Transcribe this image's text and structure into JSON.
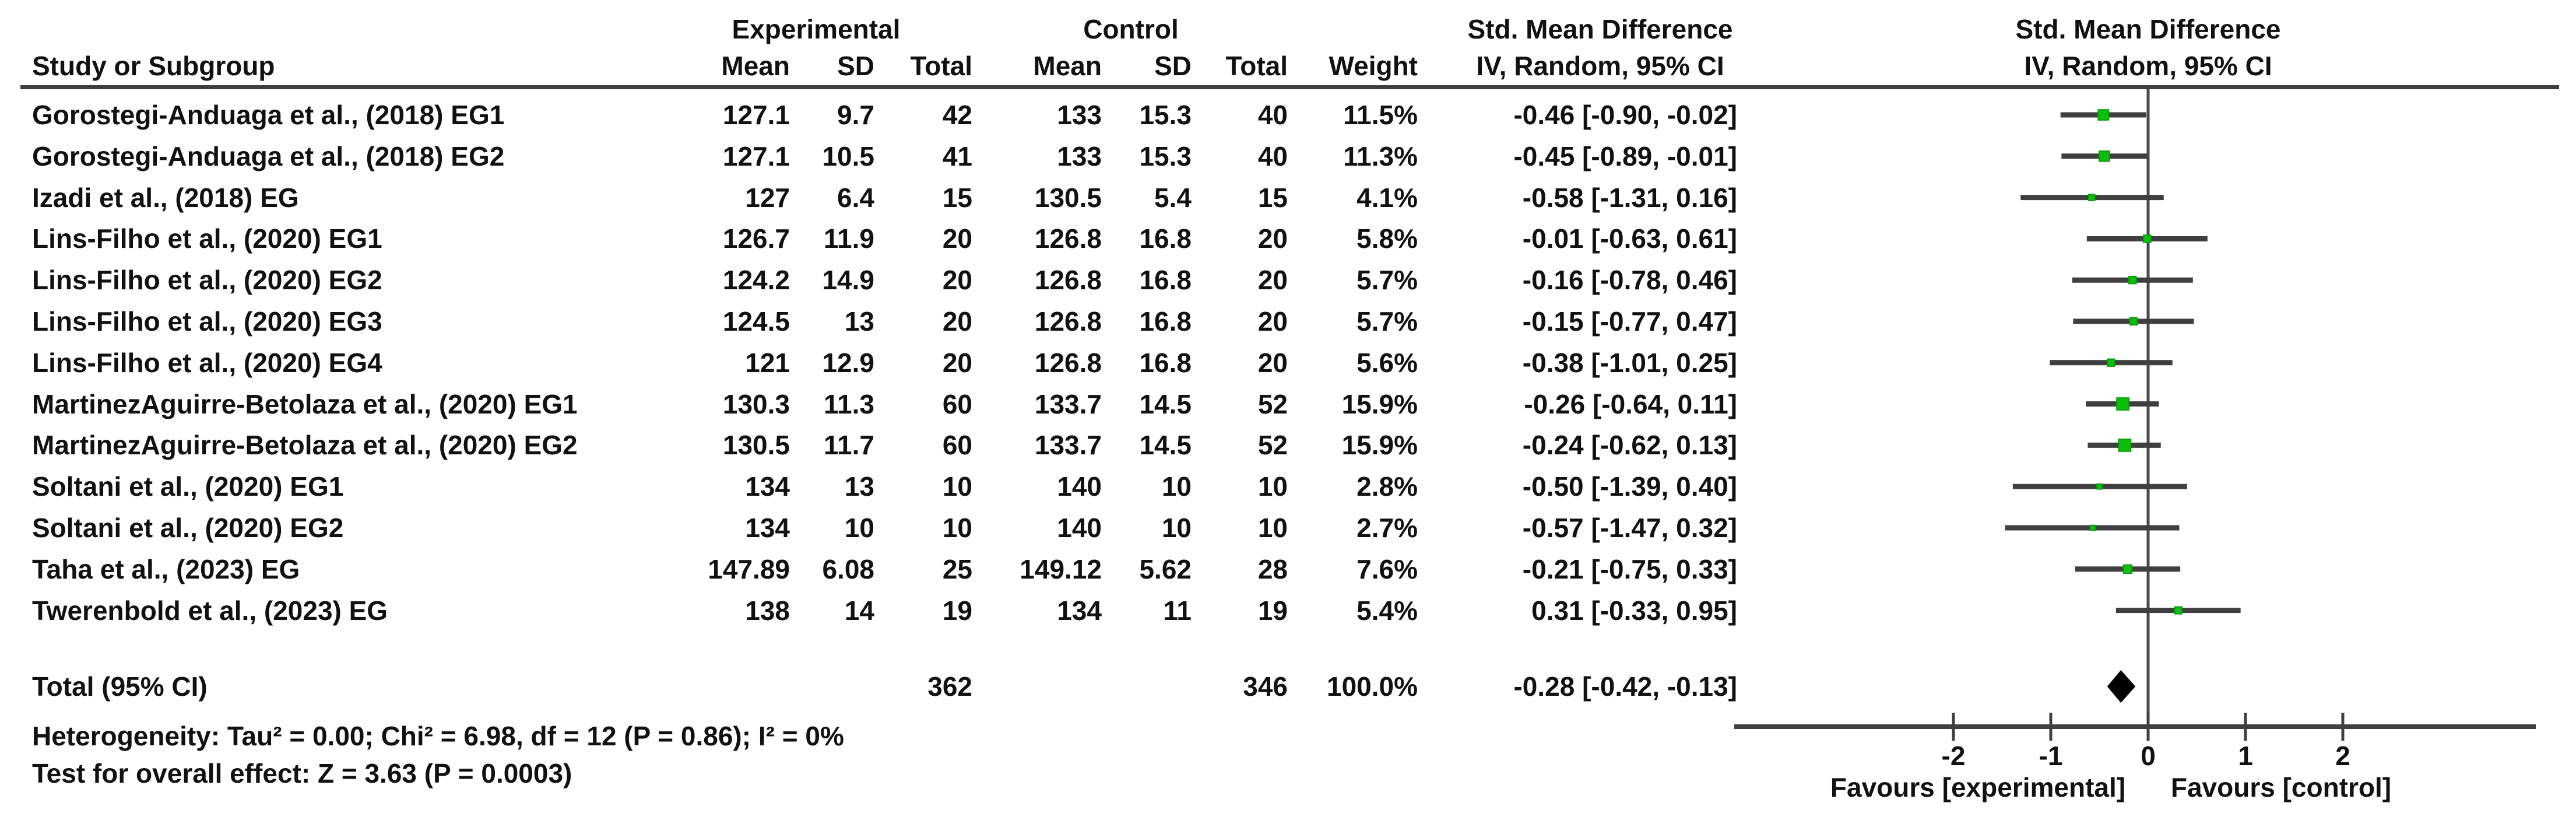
{
  "colors": {
    "marker_green": "#0cbf0c",
    "marker_green_edge": "#089e08",
    "line_dark": "#3f3f3f",
    "zero_line": "#4a4a4a",
    "diamond_black": "#000000",
    "text": "#111111"
  },
  "header": {
    "col_study": "Study or Subgroup",
    "group_experimental": "Experimental",
    "group_control": "Control",
    "col_mean": "Mean",
    "col_sd": "SD",
    "col_total": "Total",
    "col_weight": "Weight",
    "smd_text_title": "Std. Mean Difference",
    "smd_text_sub": "IV, Random, 95% CI",
    "smd_plot_title": "Std. Mean Difference",
    "smd_plot_sub": "IV, Random, 95% CI"
  },
  "footnotes": {
    "heterogeneity": "Heterogeneity: Tau² = 0.00; Chi² = 6.98, df = 12 (P = 0.86); I² = 0%",
    "overall_effect": "Test for overall effect: Z = 3.63 (P = 0.0003)"
  },
  "chart_data": {
    "type": "forest",
    "effect_measure": "Std. Mean Difference, IV, Random, 95% CI",
    "x_ticks": [
      -2,
      -1,
      0,
      1,
      2
    ],
    "x_axis_labels": {
      "left": "Favours [experimental]",
      "right": "Favours [control]"
    },
    "studies": [
      {
        "name": "Gorostegi-Anduaga et al., (2018) EG1",
        "exp_mean": "127.1",
        "exp_sd": "9.7",
        "exp_total": "42",
        "ctl_mean": "133",
        "ctl_sd": "15.3",
        "ctl_total": "40",
        "weight": "11.5%",
        "ci_label": "-0.46 [-0.90, -0.02]",
        "smd": -0.46,
        "lo": -0.9,
        "hi": -0.02,
        "weight_pct": 11.5
      },
      {
        "name": "Gorostegi-Anduaga et al., (2018) EG2",
        "exp_mean": "127.1",
        "exp_sd": "10.5",
        "exp_total": "41",
        "ctl_mean": "133",
        "ctl_sd": "15.3",
        "ctl_total": "40",
        "weight": "11.3%",
        "ci_label": "-0.45 [-0.89, -0.01]",
        "smd": -0.45,
        "lo": -0.89,
        "hi": -0.01,
        "weight_pct": 11.3
      },
      {
        "name": "Izadi et al., (2018) EG",
        "exp_mean": "127",
        "exp_sd": "6.4",
        "exp_total": "15",
        "ctl_mean": "130.5",
        "ctl_sd": "5.4",
        "ctl_total": "15",
        "weight": "4.1%",
        "ci_label": "-0.58 [-1.31, 0.16]",
        "smd": -0.58,
        "lo": -1.31,
        "hi": 0.16,
        "weight_pct": 4.1
      },
      {
        "name": "Lins-Filho et al., (2020) EG1",
        "exp_mean": "126.7",
        "exp_sd": "11.9",
        "exp_total": "20",
        "ctl_mean": "126.8",
        "ctl_sd": "16.8",
        "ctl_total": "20",
        "weight": "5.8%",
        "ci_label": "-0.01 [-0.63, 0.61]",
        "smd": -0.01,
        "lo": -0.63,
        "hi": 0.61,
        "weight_pct": 5.8
      },
      {
        "name": "Lins-Filho et al., (2020) EG2",
        "exp_mean": "124.2",
        "exp_sd": "14.9",
        "exp_total": "20",
        "ctl_mean": "126.8",
        "ctl_sd": "16.8",
        "ctl_total": "20",
        "weight": "5.7%",
        "ci_label": "-0.16 [-0.78, 0.46]",
        "smd": -0.16,
        "lo": -0.78,
        "hi": 0.46,
        "weight_pct": 5.7
      },
      {
        "name": "Lins-Filho et al., (2020) EG3",
        "exp_mean": "124.5",
        "exp_sd": "13",
        "exp_total": "20",
        "ctl_mean": "126.8",
        "ctl_sd": "16.8",
        "ctl_total": "20",
        "weight": "5.7%",
        "ci_label": "-0.15 [-0.77, 0.47]",
        "smd": -0.15,
        "lo": -0.77,
        "hi": 0.47,
        "weight_pct": 5.7
      },
      {
        "name": "Lins-Filho et al., (2020) EG4",
        "exp_mean": "121",
        "exp_sd": "12.9",
        "exp_total": "20",
        "ctl_mean": "126.8",
        "ctl_sd": "16.8",
        "ctl_total": "20",
        "weight": "5.6%",
        "ci_label": "-0.38 [-1.01, 0.25]",
        "smd": -0.38,
        "lo": -1.01,
        "hi": 0.25,
        "weight_pct": 5.6
      },
      {
        "name": "MartinezAguirre-Betolaza et al., (2020) EG1",
        "exp_mean": "130.3",
        "exp_sd": "11.3",
        "exp_total": "60",
        "ctl_mean": "133.7",
        "ctl_sd": "14.5",
        "ctl_total": "52",
        "weight": "15.9%",
        "ci_label": "-0.26 [-0.64, 0.11]",
        "smd": -0.26,
        "lo": -0.64,
        "hi": 0.11,
        "weight_pct": 15.9
      },
      {
        "name": "MartinezAguirre-Betolaza et al., (2020) EG2",
        "exp_mean": "130.5",
        "exp_sd": "11.7",
        "exp_total": "60",
        "ctl_mean": "133.7",
        "ctl_sd": "14.5",
        "ctl_total": "52",
        "weight": "15.9%",
        "ci_label": "-0.24 [-0.62, 0.13]",
        "smd": -0.24,
        "lo": -0.62,
        "hi": 0.13,
        "weight_pct": 15.9
      },
      {
        "name": "Soltani et al., (2020) EG1",
        "exp_mean": "134",
        "exp_sd": "13",
        "exp_total": "10",
        "ctl_mean": "140",
        "ctl_sd": "10",
        "ctl_total": "10",
        "weight": "2.8%",
        "ci_label": "-0.50 [-1.39, 0.40]",
        "smd": -0.5,
        "lo": -1.39,
        "hi": 0.4,
        "weight_pct": 2.8
      },
      {
        "name": "Soltani et al., (2020) EG2",
        "exp_mean": "134",
        "exp_sd": "10",
        "exp_total": "10",
        "ctl_mean": "140",
        "ctl_sd": "10",
        "ctl_total": "10",
        "weight": "2.7%",
        "ci_label": "-0.57 [-1.47, 0.32]",
        "smd": -0.57,
        "lo": -1.47,
        "hi": 0.32,
        "weight_pct": 2.7
      },
      {
        "name": "Taha et al., (2023) EG",
        "exp_mean": "147.89",
        "exp_sd": "6.08",
        "exp_total": "25",
        "ctl_mean": "149.12",
        "ctl_sd": "5.62",
        "ctl_total": "28",
        "weight": "7.6%",
        "ci_label": "-0.21 [-0.75, 0.33]",
        "smd": -0.21,
        "lo": -0.75,
        "hi": 0.33,
        "weight_pct": 7.6
      },
      {
        "name": "Twerenbold et al., (2023) EG",
        "exp_mean": "138",
        "exp_sd": "14",
        "exp_total": "19",
        "ctl_mean": "134",
        "ctl_sd": "11",
        "ctl_total": "19",
        "weight": "5.4%",
        "ci_label": "0.31 [-0.33, 0.95]",
        "smd": 0.31,
        "lo": -0.33,
        "hi": 0.95,
        "weight_pct": 5.4
      }
    ],
    "total": {
      "label": "Total (95% CI)",
      "exp_total": "362",
      "ctl_total": "346",
      "weight": "100.0%",
      "ci_label": "-0.28 [-0.42, -0.13]",
      "smd": -0.28,
      "lo": -0.42,
      "hi": -0.13
    }
  }
}
